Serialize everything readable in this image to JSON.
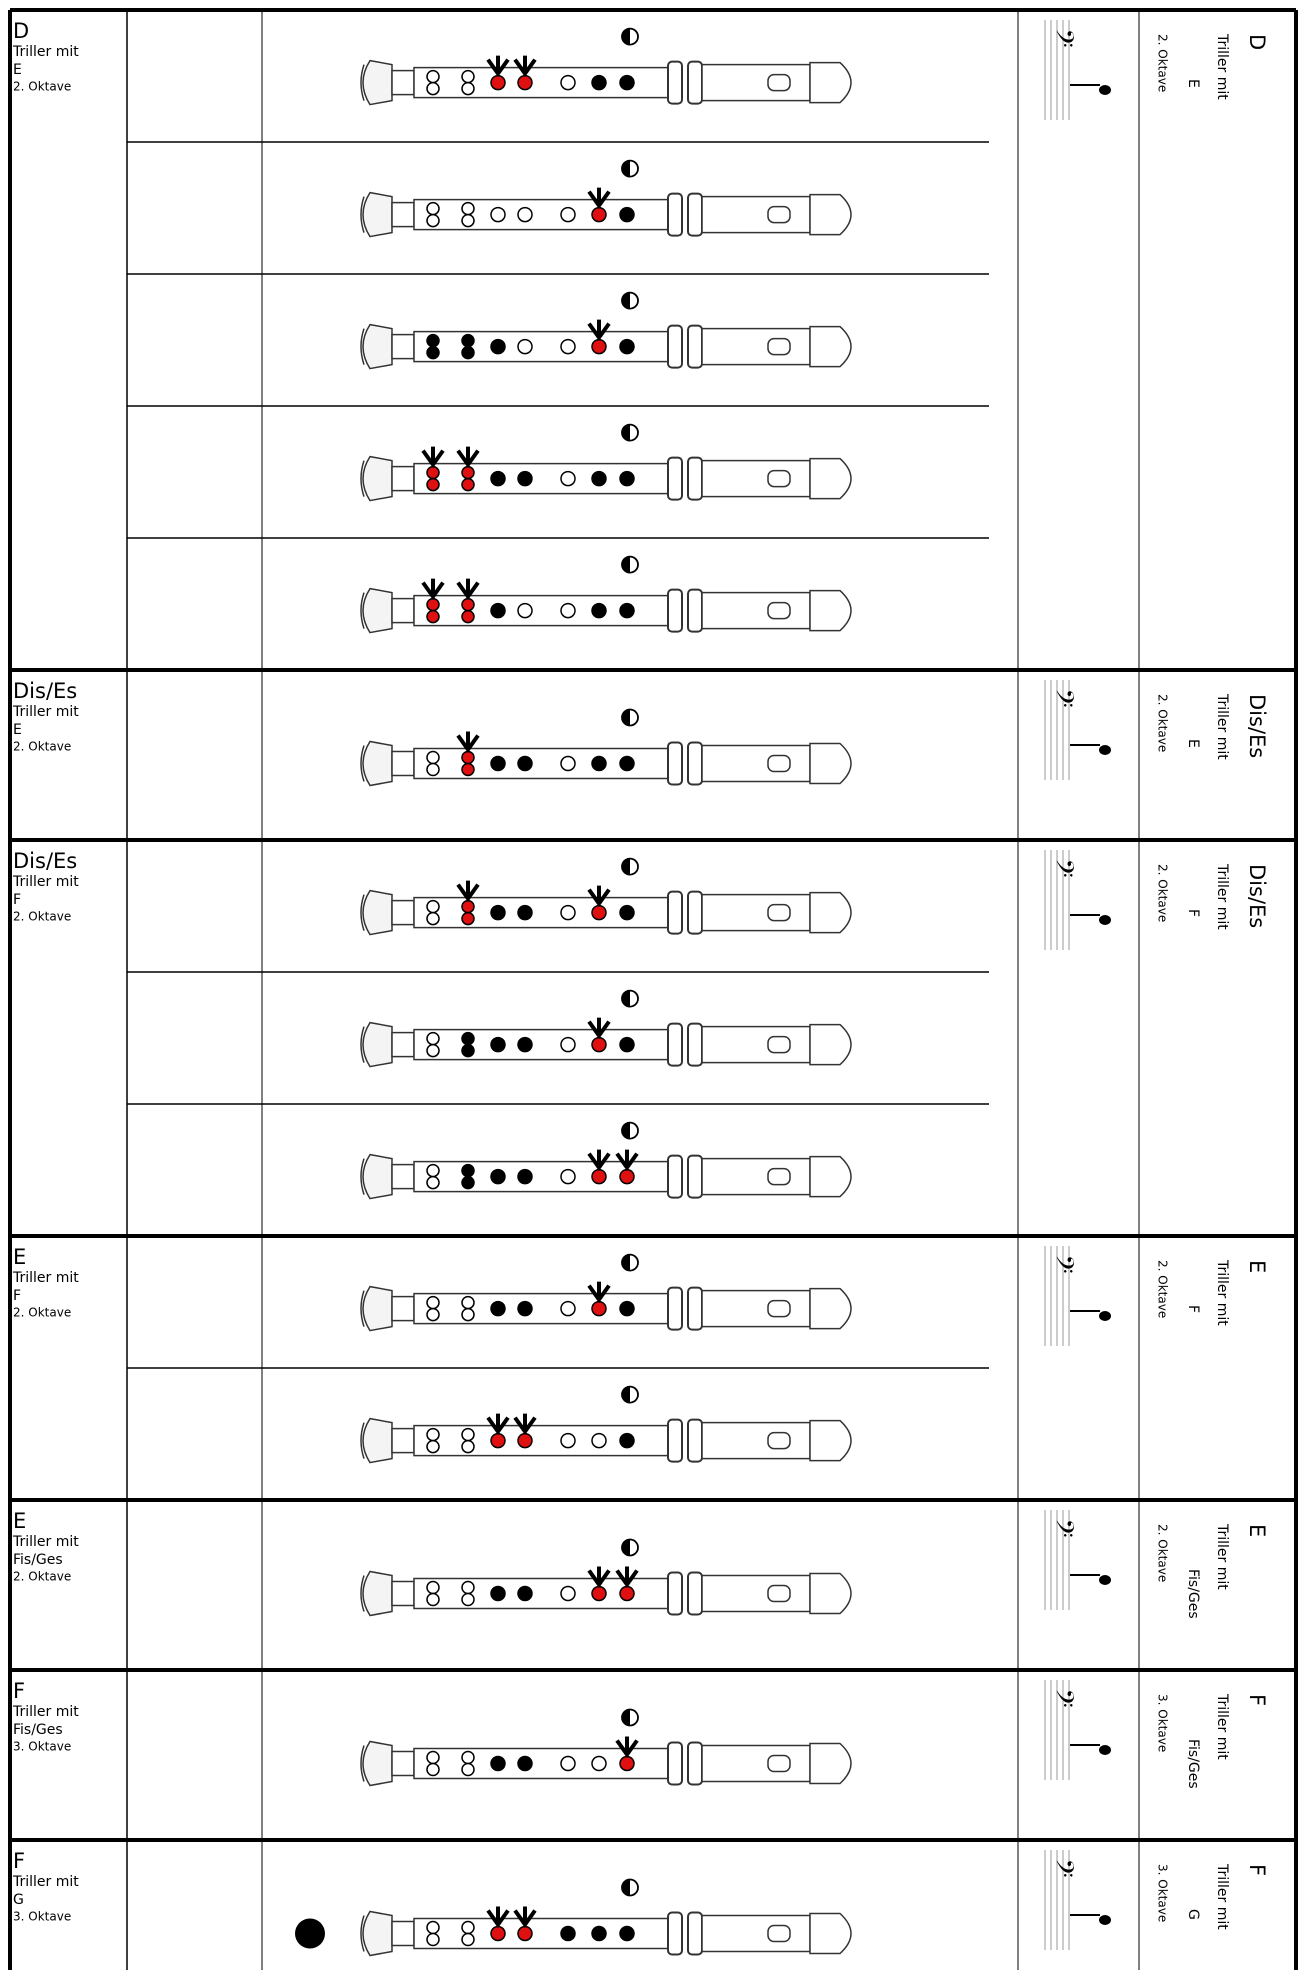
{
  "groups": [
    {
      "note": "D",
      "trill_label": "Triller mit",
      "trill": "E",
      "octave": "2. Oktave",
      "fingerings": [
        {
          "holes": [
            "open",
            "open",
            "trill",
            "trill",
            "open",
            "closed",
            "closed",
            "half"
          ]
        },
        {
          "holes": [
            "open",
            "open",
            "open",
            "open",
            "open",
            "trill",
            "closed",
            "half"
          ]
        },
        {
          "holes": [
            "closed",
            "closed",
            "closed",
            "open",
            "open",
            "trill",
            "closed",
            "half"
          ]
        },
        {
          "holes": [
            "trill",
            "trill",
            "closed",
            "closed",
            "open",
            "closed",
            "closed",
            "half"
          ]
        },
        {
          "holes": [
            "trill",
            "trill",
            "closed",
            "open",
            "open",
            "closed",
            "closed",
            "half"
          ]
        }
      ]
    },
    {
      "note": "Dis/Es",
      "trill_label": "Triller mit",
      "trill": "E",
      "octave": "2. Oktave",
      "fingerings": [
        {
          "holes": [
            "open",
            "trill",
            "closed",
            "closed",
            "open",
            "closed",
            "closed",
            "half"
          ]
        }
      ]
    },
    {
      "note": "Dis/Es",
      "trill_label": "Triller mit",
      "trill": "F",
      "octave": "2. Oktave",
      "fingerings": [
        {
          "holes": [
            "open",
            "trill",
            "closed",
            "closed",
            "open",
            "trill",
            "closed",
            "half"
          ]
        },
        {
          "holes": [
            "open",
            "closed",
            "closed",
            "closed",
            "open",
            "trill",
            "closed",
            "half"
          ]
        },
        {
          "holes": [
            "open",
            "closed",
            "closed",
            "closed",
            "open",
            "trill",
            "trill",
            "half"
          ]
        }
      ]
    },
    {
      "note": "E",
      "trill_label": "Triller mit",
      "trill": "F",
      "octave": "2. Oktave",
      "fingerings": [
        {
          "holes": [
            "open",
            "open",
            "closed",
            "closed",
            "open",
            "trill",
            "closed",
            "half"
          ]
        },
        {
          "holes": [
            "open",
            "open",
            "trill",
            "trill",
            "open",
            "open",
            "closed",
            "half"
          ]
        }
      ]
    },
    {
      "note": "E",
      "trill_label": "Triller mit",
      "trill": "Fis/Ges",
      "octave": "2. Oktave",
      "fingerings": [
        {
          "holes": [
            "open",
            "open",
            "closed",
            "closed",
            "open",
            "trill",
            "trill",
            "half"
          ]
        }
      ]
    },
    {
      "note": "F",
      "trill_label": "Triller mit",
      "trill": "Fis/Ges",
      "octave": "3. Oktave",
      "fingerings": [
        {
          "holes": [
            "open",
            "open",
            "closed",
            "closed",
            "open",
            "open",
            "trill",
            "half"
          ]
        }
      ]
    },
    {
      "note": "F",
      "trill_label": "Triller mit",
      "trill": "G",
      "octave": "3. Oktave",
      "fingerings": [
        {
          "holes": [
            "open",
            "open",
            "trill",
            "trill",
            "closed",
            "closed",
            "closed",
            "half"
          ],
          "bell": "closed"
        }
      ]
    }
  ]
}
